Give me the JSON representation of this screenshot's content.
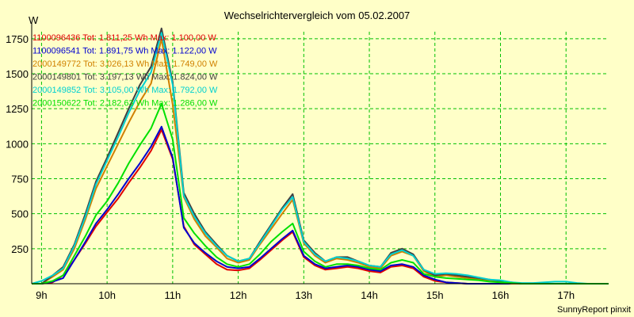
{
  "chart_data": {
    "type": "line",
    "title": "Wechselrichtervergleich vom 05.02.2007",
    "ylabel": "W",
    "xlabel": "",
    "ylim": [
      0,
      1800
    ],
    "xlim": [
      8.85,
      17.65
    ],
    "grid": true,
    "legend_position": "top-left",
    "y_ticks": [
      250,
      500,
      750,
      1000,
      1250,
      1500,
      1750
    ],
    "x_ticks": [
      {
        "value": 9,
        "label": "9h"
      },
      {
        "value": 10,
        "label": "10h"
      },
      {
        "value": 11,
        "label": "11h"
      },
      {
        "value": 12,
        "label": "12h"
      },
      {
        "value": 13,
        "label": "13h"
      },
      {
        "value": 14,
        "label": "14h"
      },
      {
        "value": 15,
        "label": "15h"
      },
      {
        "value": 16,
        "label": "16h"
      },
      {
        "value": 17,
        "label": "17h"
      }
    ],
    "x": [
      8.85,
      9.0,
      9.17,
      9.33,
      9.5,
      9.67,
      9.83,
      10.0,
      10.17,
      10.33,
      10.5,
      10.67,
      10.83,
      11.0,
      11.17,
      11.33,
      11.5,
      11.67,
      11.83,
      12.0,
      12.17,
      12.33,
      12.5,
      12.67,
      12.83,
      13.0,
      13.17,
      13.33,
      13.5,
      13.67,
      13.83,
      14.0,
      14.17,
      14.33,
      14.5,
      14.67,
      14.83,
      15.0,
      15.17,
      15.33,
      15.5,
      15.67,
      15.83,
      16.0,
      16.17,
      16.33,
      16.5,
      16.67,
      16.83,
      17.0,
      17.17,
      17.33,
      17.5,
      17.65
    ],
    "series": [
      {
        "name": "1100096436",
        "total": "Tot: 1.811,25 Wh",
        "max": "Max: 1.100,00 W",
        "color": "#e00000",
        "values": [
          0,
          0,
          10,
          60,
          170,
          290,
          410,
          510,
          610,
          720,
          830,
          950,
          1100,
          890,
          410,
          280,
          210,
          140,
          100,
          95,
          110,
          170,
          240,
          310,
          370,
          190,
          130,
          100,
          110,
          120,
          110,
          90,
          80,
          120,
          130,
          110,
          50,
          20,
          10,
          5,
          0,
          0,
          0,
          0,
          0,
          0,
          0,
          0,
          0,
          0,
          0,
          0,
          0,
          0
        ]
      },
      {
        "name": "1100096541",
        "total": "Tot: 1.891,75 Wh",
        "max": "Max: 1.122,00 W",
        "color": "#0000d0",
        "values": [
          0,
          0,
          15,
          40,
          170,
          300,
          430,
          530,
          640,
          750,
          860,
          980,
          1122,
          900,
          400,
          290,
          220,
          160,
          120,
          110,
          120,
          180,
          250,
          320,
          380,
          200,
          140,
          110,
          120,
          130,
          120,
          100,
          90,
          130,
          140,
          120,
          60,
          30,
          10,
          5,
          0,
          0,
          0,
          0,
          0,
          0,
          0,
          0,
          0,
          0,
          0,
          0,
          0,
          0
        ]
      },
      {
        "name": "2000149772",
        "total": "Tot: 3.026,13 Wh",
        "max": "Max: 1.749,00 W",
        "color": "#d08000",
        "values": [
          0,
          0,
          50,
          100,
          250,
          460,
          680,
          840,
          1000,
          1150,
          1300,
          1430,
          1749,
          1280,
          620,
          460,
          340,
          260,
          180,
          150,
          170,
          280,
          390,
          500,
          600,
          290,
          200,
          150,
          180,
          170,
          150,
          120,
          110,
          200,
          230,
          200,
          90,
          50,
          60,
          50,
          40,
          30,
          20,
          10,
          0,
          0,
          0,
          0,
          0,
          0,
          0,
          0,
          0,
          0
        ]
      },
      {
        "name": "2000149801",
        "total": "Tot: 3.197,13 Wh",
        "max": "Max: 1.824,00 W",
        "color": "#404040",
        "values": [
          0,
          0,
          60,
          120,
          280,
          500,
          730,
          900,
          1080,
          1250,
          1420,
          1550,
          1824,
          1440,
          650,
          500,
          370,
          280,
          200,
          160,
          180,
          300,
          420,
          540,
          640,
          310,
          220,
          160,
          190,
          190,
          160,
          130,
          120,
          220,
          250,
          210,
          100,
          60,
          70,
          60,
          50,
          40,
          30,
          20,
          10,
          0,
          0,
          0,
          0,
          0,
          0,
          0,
          0,
          0
        ]
      },
      {
        "name": "2000149852",
        "total": "Tot: 3.105,00 Wh",
        "max": "Max: 1.792,00 W",
        "color": "#00d0d0",
        "values": [
          0,
          20,
          60,
          110,
          270,
          480,
          710,
          880,
          1050,
          1220,
          1380,
          1510,
          1792,
          1420,
          630,
          480,
          360,
          270,
          200,
          160,
          180,
          290,
          410,
          530,
          620,
          300,
          210,
          160,
          190,
          180,
          160,
          130,
          120,
          210,
          240,
          200,
          100,
          70,
          75,
          70,
          60,
          45,
          30,
          25,
          10,
          5,
          5,
          10,
          15,
          15,
          5,
          0,
          0,
          0
        ]
      },
      {
        "name": "2000150622",
        "total": "Tot: 2.182,63 Wh",
        "max": "Max: 1.286,00 W",
        "color": "#00e000",
        "values": [
          0,
          0,
          20,
          60,
          200,
          340,
          490,
          590,
          720,
          860,
          990,
          1110,
          1286,
          1030,
          470,
          360,
          270,
          190,
          140,
          120,
          140,
          210,
          300,
          370,
          430,
          230,
          160,
          120,
          140,
          140,
          130,
          110,
          100,
          150,
          170,
          150,
          70,
          50,
          40,
          35,
          30,
          25,
          15,
          10,
          5,
          0,
          0,
          0,
          0,
          0,
          0,
          0,
          0,
          0
        ]
      }
    ],
    "footer": "SunnyReport pinxit"
  }
}
